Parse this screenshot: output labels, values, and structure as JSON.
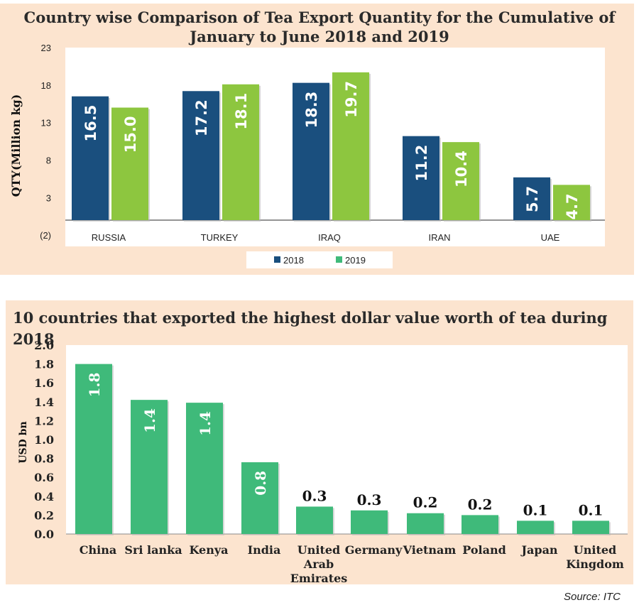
{
  "chart1": {
    "title_line1": "Country wise Comparison of Tea Export Quantity for the Cumulative of",
    "title_line2": "January to June 2018 and 2019",
    "ylabel": "QTY(Million kg)",
    "y_ticks": [
      "23",
      "18",
      "13",
      "8",
      "3",
      "(2)"
    ],
    "legend": [
      "2018",
      "2019"
    ]
  },
  "chart2": {
    "title": "10 countries that exported the highest dollar value worth of tea during 2018",
    "ylabel": "USD bn",
    "y_ticks": [
      "2.0",
      "1.8",
      "1.6",
      "1.4",
      "1.2",
      "1.0",
      "0.8",
      "0.6",
      "0.4",
      "0.2",
      "0.0"
    ]
  },
  "source": "Source: ITC",
  "colors": {
    "series_2018": "#1a4f7e",
    "series_2019": "#8dc63f",
    "bars_value": "#3fba7a",
    "panel_bg": "#fce4cf"
  },
  "chart_data": [
    {
      "type": "bar",
      "title": "Country wise Comparison of Tea Export Quantity for the Cumulative of January to June 2018 and 2019",
      "xlabel": "",
      "ylabel": "QTY(Million kg)",
      "ylim": [
        -2,
        23
      ],
      "categories": [
        "RUSSIA",
        "TURKEY",
        "IRAQ",
        "IRAN",
        "UAE"
      ],
      "series": [
        {
          "name": "2018",
          "values": [
            16.5,
            17.2,
            18.3,
            11.2,
            5.7
          ],
          "labels": [
            "16.5",
            "17.2",
            "18.3",
            "11.2",
            "5.7"
          ]
        },
        {
          "name": "2019",
          "values": [
            15.0,
            18.1,
            19.7,
            10.4,
            4.7
          ],
          "labels": [
            "15.0",
            "18.1",
            "19.7",
            "10.4",
            "4.7"
          ]
        }
      ],
      "legend": "bottom",
      "grid": false
    },
    {
      "type": "bar",
      "title": "10 countries that exported the highest dollar value worth of tea during 2018",
      "xlabel": "",
      "ylabel": "USD bn",
      "ylim": [
        0,
        2.0
      ],
      "categories": [
        "China",
        "Sri lanka",
        "Kenya",
        "India",
        "United Arab Emirates",
        "Germany",
        "Vietnam",
        "Poland",
        "Japan",
        "United Kingdom"
      ],
      "category_lines": [
        [
          "China"
        ],
        [
          "Sri lanka"
        ],
        [
          "Kenya"
        ],
        [
          "India"
        ],
        [
          "United",
          "Arab",
          "Emirates"
        ],
        [
          "Germany"
        ],
        [
          "Vietnam"
        ],
        [
          "Poland"
        ],
        [
          "Japan"
        ],
        [
          "United",
          "Kingdom"
        ]
      ],
      "values": [
        1.8,
        1.42,
        1.39,
        0.76,
        0.29,
        0.25,
        0.22,
        0.2,
        0.14,
        0.14
      ],
      "labels": [
        "1.8",
        "1.4",
        "1.4",
        "0.8",
        "0.3",
        "0.3",
        "0.2",
        "0.2",
        "0.1",
        "0.1"
      ],
      "legend": "none",
      "grid": false
    }
  ]
}
